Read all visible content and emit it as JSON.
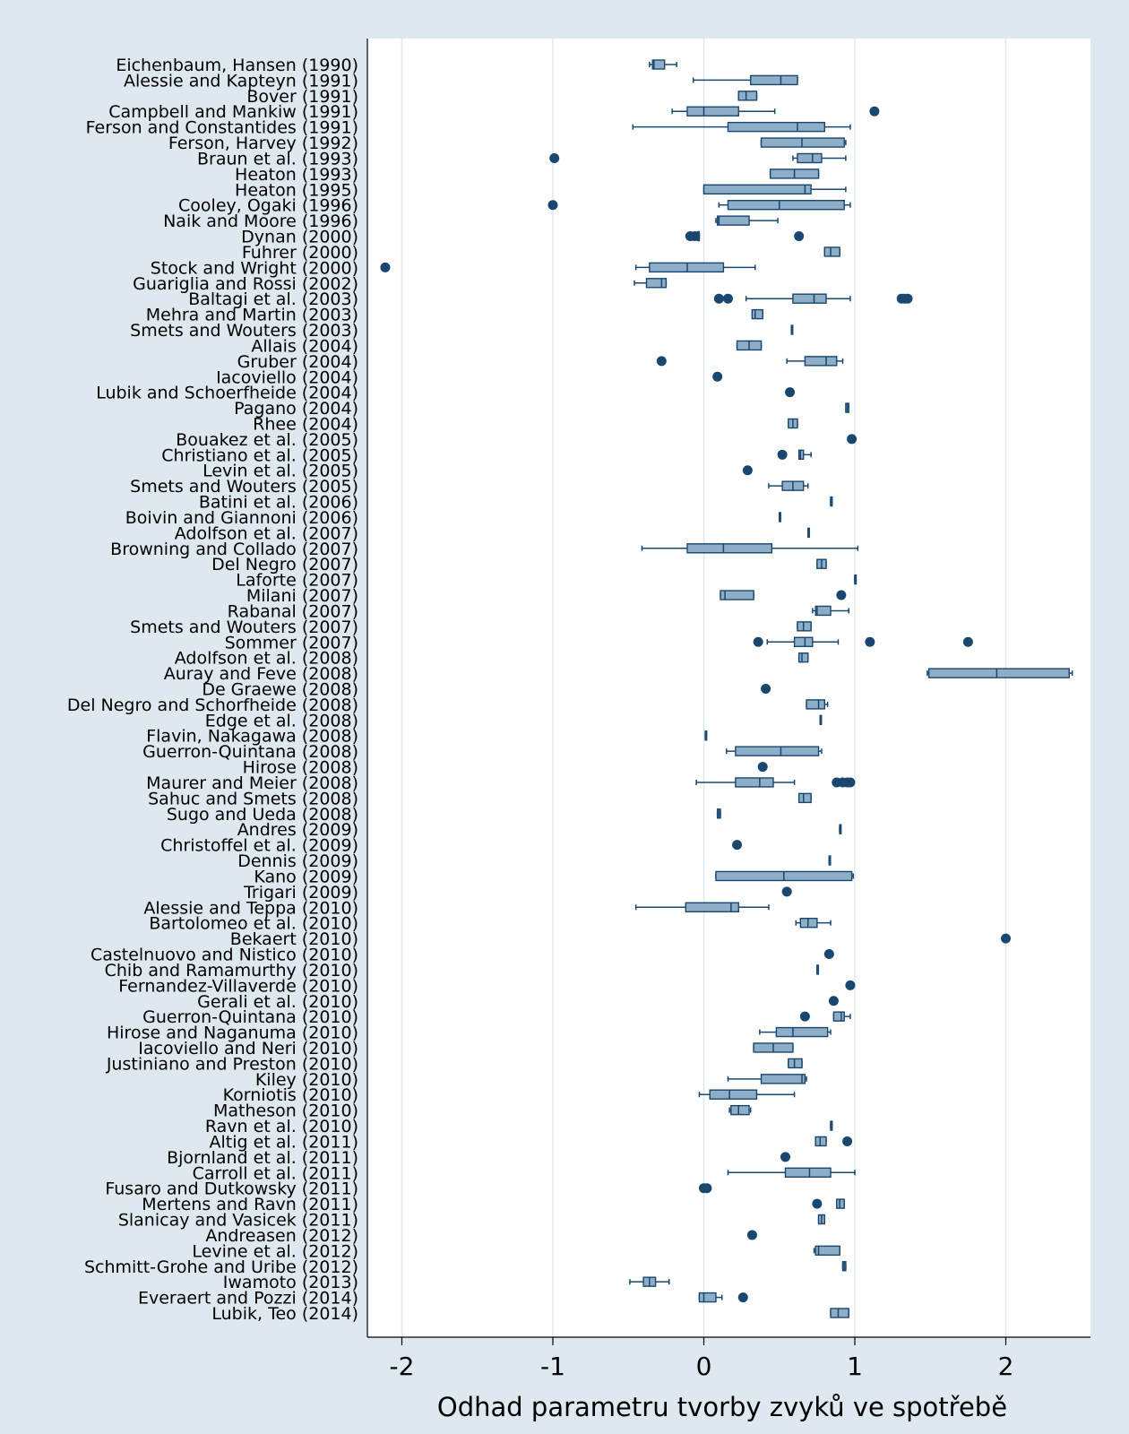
{
  "chart_data": {
    "type": "boxplot",
    "xlabel": "Odhad parametru tvorby zvyků ve spotřebě",
    "xlim": [
      -2.22,
      2.55
    ],
    "xticks": [
      -2,
      -1,
      0,
      1,
      2
    ],
    "grid": true,
    "orientation": "horizontal",
    "colors": {
      "box": "#8eadc7",
      "outline": "#1a476f",
      "outlier": "#1a476f",
      "plot_bg": "#ffffff",
      "page_bg": "#dde8ef",
      "grid": "#dde8ef"
    },
    "studies": [
      {
        "label": "Eichenbaum, Hansen (1990)",
        "wl": -0.36,
        "q1": -0.34,
        "med": -0.33,
        "q3": -0.26,
        "wh": -0.18,
        "outliers": []
      },
      {
        "label": "Alessie and Kapteyn (1991)",
        "wl": -0.07,
        "q1": 0.31,
        "med": 0.51,
        "q3": 0.62,
        "wh": 0.62,
        "outliers": []
      },
      {
        "label": "Bover (1991)",
        "wl": 0.23,
        "q1": 0.23,
        "med": 0.28,
        "q3": 0.35,
        "wh": 0.35,
        "outliers": []
      },
      {
        "label": "Campbell and Mankiw (1991)",
        "wl": -0.21,
        "q1": -0.11,
        "med": 0.0,
        "q3": 0.23,
        "wh": 0.47,
        "outliers": [
          1.13
        ]
      },
      {
        "label": "Ferson and Constantides (1991)",
        "wl": -0.47,
        "q1": 0.16,
        "med": 0.62,
        "q3": 0.8,
        "wh": 0.97,
        "outliers": []
      },
      {
        "label": "Ferson, Harvey (1992)",
        "wl": 0.38,
        "q1": 0.38,
        "med": 0.65,
        "q3": 0.93,
        "wh": 0.94,
        "outliers": []
      },
      {
        "label": "Braun et al. (1993)",
        "wl": 0.59,
        "q1": 0.62,
        "med": 0.72,
        "q3": 0.78,
        "wh": 0.94,
        "outliers": [
          -0.99
        ]
      },
      {
        "label": "Heaton (1993)",
        "wl": 0.44,
        "q1": 0.44,
        "med": 0.6,
        "q3": 0.76,
        "wh": 0.76,
        "outliers": []
      },
      {
        "label": "Heaton (1995)",
        "wl": 0.0,
        "q1": 0.0,
        "med": 0.67,
        "q3": 0.71,
        "wh": 0.94,
        "outliers": []
      },
      {
        "label": "Cooley, Ogaki (1996)",
        "wl": 0.1,
        "q1": 0.16,
        "med": 0.5,
        "q3": 0.93,
        "wh": 0.97,
        "outliers": [
          -1.0
        ]
      },
      {
        "label": "Naik and Moore (1996)",
        "wl": 0.08,
        "q1": 0.09,
        "med": 0.1,
        "q3": 0.3,
        "wh": 0.49,
        "outliers": []
      },
      {
        "label": "Dynan (2000)",
        "wl": -0.04,
        "q1": -0.04,
        "med": -0.04,
        "q3": -0.03,
        "wh": -0.03,
        "outliers": [
          -0.09,
          -0.06,
          0.63
        ]
      },
      {
        "label": "Fuhrer (2000)",
        "wl": 0.8,
        "q1": 0.8,
        "med": 0.84,
        "q3": 0.9,
        "wh": 0.9,
        "outliers": []
      },
      {
        "label": "Stock and Wright (2000)",
        "wl": -0.45,
        "q1": -0.36,
        "med": -0.11,
        "q3": 0.13,
        "wh": 0.34,
        "outliers": [
          -2.11
        ]
      },
      {
        "label": "Guariglia and Rossi (2002)",
        "wl": -0.46,
        "q1": -0.38,
        "med": -0.28,
        "q3": -0.25,
        "wh": -0.25,
        "outliers": []
      },
      {
        "label": "Baltagi et al. (2003)",
        "wl": 0.28,
        "q1": 0.59,
        "med": 0.73,
        "q3": 0.81,
        "wh": 0.97,
        "outliers": [
          0.1,
          0.16,
          1.31,
          1.33,
          1.35
        ]
      },
      {
        "label": "Mehra and Martin (2003)",
        "wl": 0.32,
        "q1": 0.32,
        "med": 0.34,
        "q3": 0.39,
        "wh": 0.39,
        "outliers": []
      },
      {
        "label": "Smets and Wouters (2003)",
        "wl": 0.58,
        "q1": 0.58,
        "med": 0.58,
        "q3": 0.58,
        "wh": 0.58,
        "outliers": []
      },
      {
        "label": "Allais (2004)",
        "wl": 0.22,
        "q1": 0.22,
        "med": 0.3,
        "q3": 0.38,
        "wh": 0.38,
        "outliers": []
      },
      {
        "label": "Gruber (2004)",
        "wl": 0.55,
        "q1": 0.67,
        "med": 0.81,
        "q3": 0.88,
        "wh": 0.92,
        "outliers": [
          -0.28
        ]
      },
      {
        "label": "Iacoviello (2004)",
        "wl": null,
        "q1": null,
        "med": null,
        "q3": null,
        "wh": null,
        "outliers": [
          0.09
        ]
      },
      {
        "label": "Lubik and Schoerfheide (2004)",
        "wl": null,
        "q1": null,
        "med": null,
        "q3": null,
        "wh": null,
        "outliers": [
          0.57
        ]
      },
      {
        "label": "Pagano (2004)",
        "wl": 0.95,
        "q1": 0.94,
        "med": 0.95,
        "q3": 0.96,
        "wh": 0.96,
        "outliers": []
      },
      {
        "label": "Rhee (2004)",
        "wl": 0.56,
        "q1": 0.56,
        "med": 0.59,
        "q3": 0.62,
        "wh": 0.62,
        "outliers": []
      },
      {
        "label": "Bouakez et al. (2005)",
        "wl": null,
        "q1": null,
        "med": null,
        "q3": null,
        "wh": null,
        "outliers": [
          0.98
        ]
      },
      {
        "label": "Christiano et al. (2005)",
        "wl": 0.63,
        "q1": 0.63,
        "med": 0.64,
        "q3": 0.66,
        "wh": 0.71,
        "outliers": [
          0.52
        ]
      },
      {
        "label": "Levin et al. (2005)",
        "wl": null,
        "q1": null,
        "med": null,
        "q3": null,
        "wh": null,
        "outliers": [
          0.29
        ]
      },
      {
        "label": "Smets and Wouters (2005)",
        "wl": 0.43,
        "q1": 0.52,
        "med": 0.59,
        "q3": 0.66,
        "wh": 0.69,
        "outliers": []
      },
      {
        "label": "Batini et al. (2006)",
        "wl": 0.84,
        "q1": 0.84,
        "med": 0.84,
        "q3": 0.85,
        "wh": 0.85,
        "outliers": []
      },
      {
        "label": "Boivin and Giannoni (2006)",
        "wl": 0.5,
        "q1": 0.5,
        "med": 0.5,
        "q3": 0.5,
        "wh": 0.5,
        "outliers": []
      },
      {
        "label": "Adolfson et al. (2007)",
        "wl": 0.69,
        "q1": 0.69,
        "med": 0.69,
        "q3": 0.69,
        "wh": 0.69,
        "outliers": []
      },
      {
        "label": "Browning and Collado (2007)",
        "wl": -0.41,
        "q1": -0.11,
        "med": 0.13,
        "q3": 0.45,
        "wh": 1.02,
        "outliers": []
      },
      {
        "label": "Del Negro (2007)",
        "wl": 0.75,
        "q1": 0.75,
        "med": 0.78,
        "q3": 0.81,
        "wh": 0.81,
        "outliers": []
      },
      {
        "label": "Laforte (2007)",
        "wl": 1.0,
        "q1": 1.0,
        "med": 1.0,
        "q3": 1.0,
        "wh": 1.0,
        "outliers": []
      },
      {
        "label": "Milani (2007)",
        "wl": 0.11,
        "q1": 0.11,
        "med": 0.14,
        "q3": 0.33,
        "wh": 0.33,
        "outliers": [
          0.91
        ]
      },
      {
        "label": "Rabanal (2007)",
        "wl": 0.72,
        "q1": 0.74,
        "med": 0.75,
        "q3": 0.84,
        "wh": 0.96,
        "outliers": []
      },
      {
        "label": "Smets and Wouters (2007)",
        "wl": 0.62,
        "q1": 0.62,
        "med": 0.66,
        "q3": 0.71,
        "wh": 0.71,
        "outliers": []
      },
      {
        "label": "Sommer (2007)",
        "wl": 0.42,
        "q1": 0.6,
        "med": 0.67,
        "q3": 0.72,
        "wh": 0.89,
        "outliers": [
          0.36,
          1.1,
          1.75
        ]
      },
      {
        "label": "Adolfson et al. (2008)",
        "wl": 0.63,
        "q1": 0.63,
        "med": 0.65,
        "q3": 0.69,
        "wh": 0.69,
        "outliers": []
      },
      {
        "label": "Auray and Feve (2008)",
        "wl": 1.48,
        "q1": 1.49,
        "med": 1.94,
        "q3": 2.42,
        "wh": 2.44,
        "outliers": []
      },
      {
        "label": "De Graewe (2008)",
        "wl": null,
        "q1": null,
        "med": null,
        "q3": null,
        "wh": null,
        "outliers": [
          0.41
        ]
      },
      {
        "label": "Del Negro and Schorfheide (2008)",
        "wl": 0.68,
        "q1": 0.68,
        "med": 0.76,
        "q3": 0.8,
        "wh": 0.82,
        "outliers": []
      },
      {
        "label": "Edge et al. (2008)",
        "wl": 0.77,
        "q1": 0.77,
        "med": 0.77,
        "q3": 0.77,
        "wh": 0.77,
        "outliers": []
      },
      {
        "label": "Flavin, Nakagawa (2008)",
        "wl": 0.01,
        "q1": 0.01,
        "med": 0.01,
        "q3": 0.01,
        "wh": 0.01,
        "outliers": []
      },
      {
        "label": "Guerron-Quintana (2008)",
        "wl": 0.15,
        "q1": 0.21,
        "med": 0.51,
        "q3": 0.76,
        "wh": 0.78,
        "outliers": []
      },
      {
        "label": "Hirose (2008)",
        "wl": null,
        "q1": null,
        "med": null,
        "q3": null,
        "wh": null,
        "outliers": [
          0.39
        ]
      },
      {
        "label": "Maurer and Meier (2008)",
        "wl": -0.05,
        "q1": 0.21,
        "med": 0.37,
        "q3": 0.46,
        "wh": 0.6,
        "outliers": [
          0.88,
          0.92,
          0.95,
          0.97
        ]
      },
      {
        "label": "Sahuc and Smets (2008)",
        "wl": 0.63,
        "q1": 0.63,
        "med": 0.66,
        "q3": 0.71,
        "wh": 0.71,
        "outliers": []
      },
      {
        "label": "Sugo and Ueda (2008)",
        "wl": 0.09,
        "q1": 0.09,
        "med": 0.1,
        "q3": 0.11,
        "wh": 0.11,
        "outliers": []
      },
      {
        "label": "Andres (2009)",
        "wl": 0.9,
        "q1": 0.9,
        "med": 0.9,
        "q3": 0.9,
        "wh": 0.9,
        "outliers": []
      },
      {
        "label": "Christoffel et al. (2009)",
        "wl": null,
        "q1": null,
        "med": null,
        "q3": null,
        "wh": null,
        "outliers": [
          0.22
        ]
      },
      {
        "label": "Dennis (2009)",
        "wl": 0.83,
        "q1": 0.83,
        "med": 0.83,
        "q3": 0.83,
        "wh": 0.83,
        "outliers": []
      },
      {
        "label": "Kano (2009)",
        "wl": 0.08,
        "q1": 0.08,
        "med": 0.53,
        "q3": 0.98,
        "wh": 0.99,
        "outliers": []
      },
      {
        "label": "Trigari (2009)",
        "wl": null,
        "q1": null,
        "med": null,
        "q3": null,
        "wh": null,
        "outliers": [
          0.55
        ]
      },
      {
        "label": "Alessie and Teppa (2010)",
        "wl": -0.45,
        "q1": -0.12,
        "med": 0.18,
        "q3": 0.23,
        "wh": 0.43,
        "outliers": []
      },
      {
        "label": "Bartolomeo et al. (2010)",
        "wl": 0.61,
        "q1": 0.64,
        "med": 0.69,
        "q3": 0.75,
        "wh": 0.84,
        "outliers": []
      },
      {
        "label": "Bekaert (2010)",
        "wl": null,
        "q1": null,
        "med": null,
        "q3": null,
        "wh": null,
        "outliers": [
          2.0
        ]
      },
      {
        "label": "Castelnuovo and Nistico (2010)",
        "wl": null,
        "q1": null,
        "med": null,
        "q3": null,
        "wh": null,
        "outliers": [
          0.83
        ]
      },
      {
        "label": "Chib and Ramamurthy (2010)",
        "wl": 0.75,
        "q1": 0.75,
        "med": 0.75,
        "q3": 0.75,
        "wh": 0.75,
        "outliers": []
      },
      {
        "label": "Fernandez-Villaverde (2010)",
        "wl": null,
        "q1": null,
        "med": null,
        "q3": null,
        "wh": null,
        "outliers": [
          0.97
        ]
      },
      {
        "label": "Gerali et al. (2010)",
        "wl": null,
        "q1": null,
        "med": null,
        "q3": null,
        "wh": null,
        "outliers": [
          0.86
        ]
      },
      {
        "label": "Guerron-Quintana (2010)",
        "wl": 0.86,
        "q1": 0.86,
        "med": 0.91,
        "q3": 0.93,
        "wh": 0.97,
        "outliers": [
          0.67
        ]
      },
      {
        "label": "Hirose and Naganuma (2010)",
        "wl": 0.37,
        "q1": 0.48,
        "med": 0.59,
        "q3": 0.82,
        "wh": 0.84,
        "outliers": []
      },
      {
        "label": "Iacoviello and Neri (2010)",
        "wl": 0.33,
        "q1": 0.33,
        "med": 0.46,
        "q3": 0.59,
        "wh": 0.59,
        "outliers": []
      },
      {
        "label": "Justiniano and Preston (2010)",
        "wl": 0.56,
        "q1": 0.56,
        "med": 0.6,
        "q3": 0.65,
        "wh": 0.65,
        "outliers": []
      },
      {
        "label": "Kiley (2010)",
        "wl": 0.16,
        "q1": 0.38,
        "med": 0.65,
        "q3": 0.67,
        "wh": 0.68,
        "outliers": []
      },
      {
        "label": "Korniotis (2010)",
        "wl": -0.03,
        "q1": 0.04,
        "med": 0.17,
        "q3": 0.35,
        "wh": 0.6,
        "outliers": []
      },
      {
        "label": "Matheson (2010)",
        "wl": 0.17,
        "q1": 0.18,
        "med": 0.23,
        "q3": 0.3,
        "wh": 0.31,
        "outliers": []
      },
      {
        "label": "Ravn et al. (2010)",
        "wl": 0.84,
        "q1": 0.84,
        "med": 0.84,
        "q3": 0.85,
        "wh": 0.85,
        "outliers": []
      },
      {
        "label": "Altig et al. (2011)",
        "wl": 0.74,
        "q1": 0.74,
        "med": 0.77,
        "q3": 0.81,
        "wh": 0.81,
        "outliers": [
          0.95
        ]
      },
      {
        "label": "Bjornland et al. (2011)",
        "wl": null,
        "q1": null,
        "med": null,
        "q3": null,
        "wh": null,
        "outliers": [
          0.54
        ]
      },
      {
        "label": "Carroll et al. (2011)",
        "wl": 0.16,
        "q1": 0.54,
        "med": 0.7,
        "q3": 0.84,
        "wh": 1.0,
        "outliers": []
      },
      {
        "label": "Fusaro and Dutkowsky (2011)",
        "wl": null,
        "q1": null,
        "med": null,
        "q3": null,
        "wh": null,
        "outliers": [
          0.0,
          0.02
        ]
      },
      {
        "label": "Mertens and Ravn (2011)",
        "wl": 0.88,
        "q1": 0.88,
        "med": 0.9,
        "q3": 0.93,
        "wh": 0.93,
        "outliers": [
          0.75
        ]
      },
      {
        "label": "Slanicay and Vasicek (2011)",
        "wl": 0.76,
        "q1": 0.76,
        "med": 0.78,
        "q3": 0.8,
        "wh": 0.8,
        "outliers": []
      },
      {
        "label": "Andreasen (2012)",
        "wl": null,
        "q1": null,
        "med": null,
        "q3": null,
        "wh": null,
        "outliers": [
          0.32
        ]
      },
      {
        "label": "Levine et al. (2012)",
        "wl": 0.73,
        "q1": 0.74,
        "med": 0.76,
        "q3": 0.9,
        "wh": 0.9,
        "outliers": []
      },
      {
        "label": "Schmitt-Grohe and Uribe (2012)",
        "wl": 0.92,
        "q1": 0.92,
        "med": 0.93,
        "q3": 0.94,
        "wh": 0.94,
        "outliers": []
      },
      {
        "label": "Iwamoto (2013)",
        "wl": -0.49,
        "q1": -0.4,
        "med": -0.36,
        "q3": -0.32,
        "wh": -0.23,
        "outliers": []
      },
      {
        "label": "Everaert and Pozzi (2014)",
        "wl": -0.03,
        "q1": -0.03,
        "med": 0.0,
        "q3": 0.08,
        "wh": 0.12,
        "outliers": [
          0.26
        ]
      },
      {
        "label": "Lubik, Teo (2014)",
        "wl": 0.84,
        "q1": 0.84,
        "med": 0.89,
        "q3": 0.96,
        "wh": 0.96,
        "outliers": []
      }
    ]
  }
}
